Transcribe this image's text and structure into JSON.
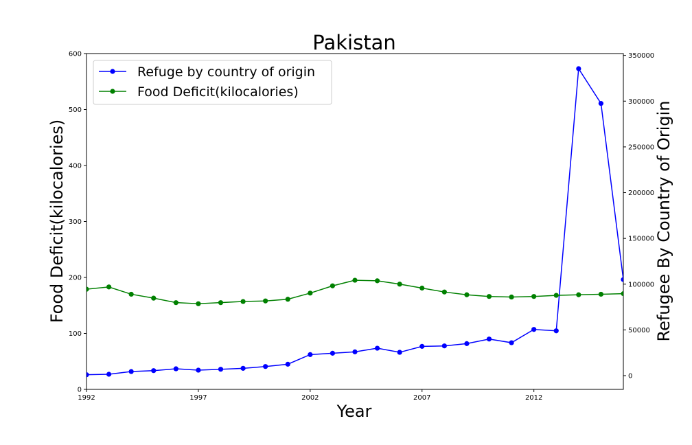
{
  "chart_data": {
    "type": "line",
    "title": "Pakistan",
    "xlabel": "Year",
    "ylabel_left": "Food Deficit(kilocalories)",
    "ylabel_right": "Refugee By Country of Origin",
    "x": [
      1992,
      1993,
      1994,
      1995,
      1996,
      1997,
      1998,
      1999,
      2000,
      2001,
      2002,
      2003,
      2004,
      2005,
      2006,
      2007,
      2008,
      2009,
      2010,
      2011,
      2012,
      2013,
      2014,
      2015,
      2016
    ],
    "xlim": [
      1992,
      2016
    ],
    "x_ticks": [
      "1992",
      "1997",
      "2002",
      "2007",
      "2012"
    ],
    "ylim_left": [
      0,
      600
    ],
    "y_ticks_left": [
      "0",
      "100",
      "200",
      "300",
      "400",
      "500",
      "600"
    ],
    "ylim_right": [
      -15000,
      352000
    ],
    "y_ticks_right": [
      "0",
      "50000",
      "100000",
      "150000",
      "200000",
      "250000",
      "300000",
      "350000"
    ],
    "grid": false,
    "legend_position": "top-left",
    "series": [
      {
        "name": "Refuge by country of origin",
        "axis": "right",
        "color": "#0000ff",
        "values": [
          1000,
          1500,
          4500,
          5500,
          7500,
          6000,
          7000,
          8000,
          10000,
          12500,
          23000,
          24500,
          26000,
          30000,
          25500,
          32000,
          32500,
          35000,
          40000,
          36000,
          50500,
          49000,
          335500,
          297500,
          105000
        ]
      },
      {
        "name": "Food Deficit(kilocalories)",
        "axis": "left",
        "color": "#008000",
        "values": [
          179,
          183,
          170,
          163,
          155,
          153,
          155,
          157,
          158,
          161,
          172,
          185,
          195,
          194,
          188,
          181,
          174,
          169,
          166,
          165,
          166,
          168,
          169,
          170,
          171
        ]
      }
    ]
  }
}
